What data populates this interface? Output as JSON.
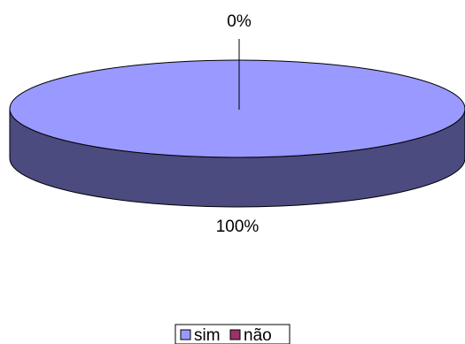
{
  "chart_data": {
    "type": "pie",
    "style": "3d",
    "categories": [
      "sim",
      "não"
    ],
    "values": [
      100,
      0
    ],
    "data_labels": [
      "100%",
      "0%"
    ],
    "legend_placement": "bottom",
    "series": [
      {
        "name": "sim",
        "value": 100,
        "label": "100%",
        "color": "#9999FF",
        "side_color": "#4B4B80"
      },
      {
        "name": "não",
        "value": 0,
        "label": "0%",
        "color": "#993366",
        "side_color": "#4C1933"
      }
    ]
  }
}
